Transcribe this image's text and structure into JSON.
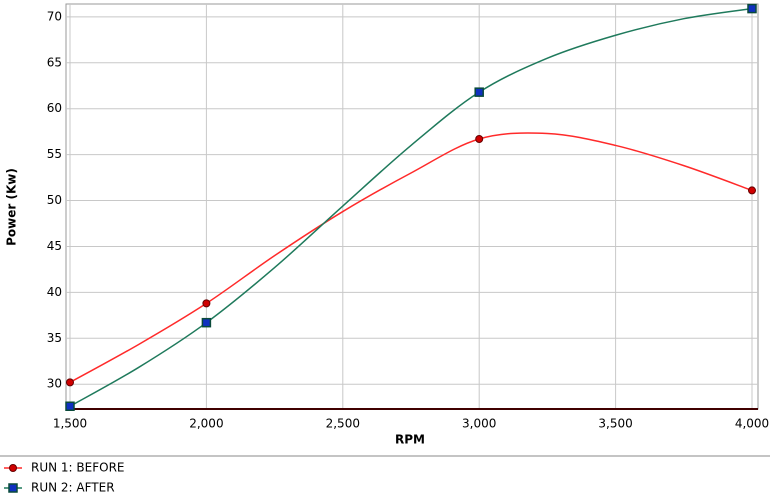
{
  "chart_data": {
    "type": "line",
    "x_label": "RPM",
    "y_label": "Power (Kw)",
    "x": [
      1500,
      1750,
      2000,
      2250,
      2500,
      2750,
      3000,
      3250,
      3500,
      3750,
      4000
    ],
    "series": [
      {
        "name": "RUN 1: BEFORE",
        "color": "#ff2a2a",
        "marker": "circle",
        "marker_color": "#d00000",
        "marker_x": [
          1500,
          2000,
          3000,
          4000
        ],
        "values": [
          30.2,
          34.3,
          38.8,
          44.0,
          48.8,
          53.0,
          56.7,
          57.3,
          56.0,
          53.8,
          51.1
        ]
      },
      {
        "name": "RUN 2: AFTER",
        "color": "#1f7a5c",
        "marker": "square",
        "marker_color": "#1030c0",
        "marker_x": [
          1500,
          2000,
          3000,
          4000
        ],
        "values": [
          27.6,
          31.8,
          36.7,
          42.7,
          49.4,
          56.0,
          61.8,
          65.5,
          68.0,
          69.8,
          70.9
        ]
      }
    ],
    "xlim": [
      1500,
      4000
    ],
    "xticks": [
      {
        "value": 1500,
        "label": "1,500"
      },
      {
        "value": 2000,
        "label": "2,000"
      },
      {
        "value": 2500,
        "label": "2,500"
      },
      {
        "value": 3000,
        "label": "3,000"
      },
      {
        "value": 3500,
        "label": "3,500"
      },
      {
        "value": 4000,
        "label": "4,000"
      }
    ],
    "ylim": [
      27.3,
      71.4
    ],
    "yticks": [
      30,
      35,
      40,
      45,
      50,
      55,
      60,
      65,
      70
    ],
    "grid": true,
    "legend": "bottom"
  }
}
